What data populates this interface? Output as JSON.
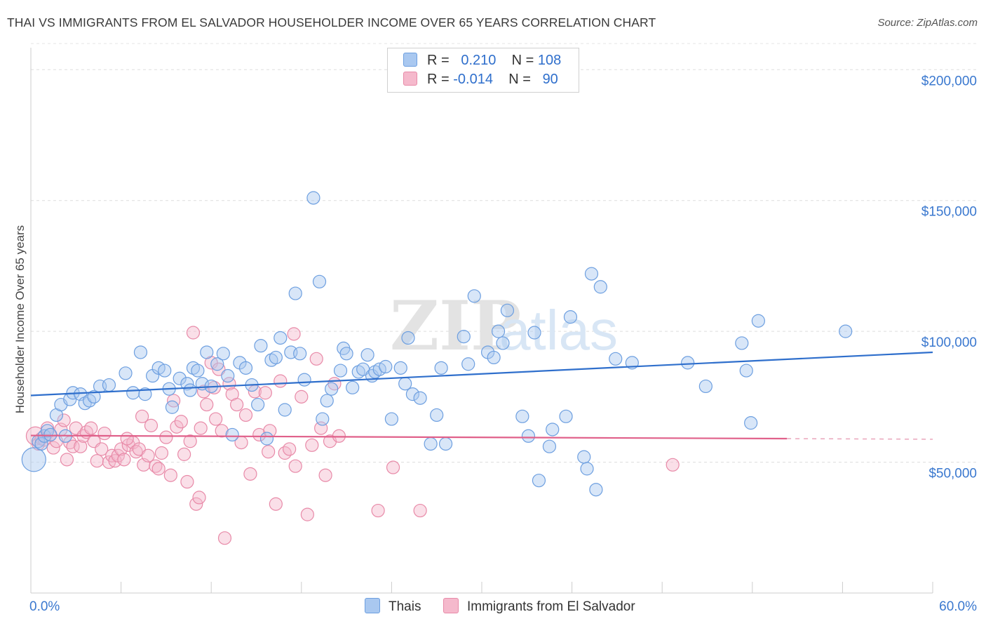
{
  "title": "THAI VS IMMIGRANTS FROM EL SALVADOR HOUSEHOLDER INCOME OVER 65 YEARS CORRELATION CHART",
  "source": "Source: ZipAtlas.com",
  "watermark": {
    "zip": "ZIP",
    "atlas": "atlas"
  },
  "legend": {
    "rows": [
      {
        "r_label": "R =",
        "r_value": "0.210",
        "n_label": "N =",
        "n_value": "108",
        "color": "#a9c8f0"
      },
      {
        "r_label": "R =",
        "r_value": "-0.014",
        "n_label": "N =",
        "n_value": "90",
        "color": "#f5b9cc"
      }
    ]
  },
  "bottom_legend": [
    {
      "label": "Thais",
      "color": "#a9c8f0"
    },
    {
      "label": "Immigrants from El Salvador",
      "color": "#f5b9cc"
    }
  ],
  "chart_data": {
    "type": "scatter",
    "title": "THAI VS IMMIGRANTS FROM EL SALVADOR HOUSEHOLDER INCOME OVER 65 YEARS CORRELATION CHART",
    "xlabel": "",
    "ylabel": "Householder Income Over 65 years",
    "xlim": [
      0,
      60
    ],
    "ylim": [
      0,
      210000
    ],
    "x_tick_labels": [
      "0.0%",
      "60.0%"
    ],
    "y_ticks": [
      50000,
      100000,
      150000,
      200000
    ],
    "y_tick_labels": [
      "$50,000",
      "$100,000",
      "$150,000",
      "$200,000"
    ],
    "grid": "horizontal dashed",
    "legend_position": "top-center",
    "series": [
      {
        "name": "Thais",
        "color": "#6d9fe0",
        "fill": "#a9c8f0",
        "trend": {
          "x": [
            0,
            60
          ],
          "y": [
            75500,
            92000
          ],
          "color": "#2f6fcc"
        },
        "points": [
          [
            0.2,
            51000
          ],
          [
            0.5,
            58000
          ],
          [
            0.7,
            57000
          ],
          [
            0.9,
            60000
          ],
          [
            1.1,
            62000
          ],
          [
            1.3,
            60500
          ],
          [
            1.7,
            68000
          ],
          [
            2.0,
            72000
          ],
          [
            2.3,
            60000
          ],
          [
            2.6,
            74000
          ],
          [
            2.8,
            76500
          ],
          [
            3.3,
            76000
          ],
          [
            3.6,
            72500
          ],
          [
            3.9,
            73500
          ],
          [
            4.2,
            75000
          ],
          [
            4.6,
            79000
          ],
          [
            5.2,
            79500
          ],
          [
            6.3,
            84000
          ],
          [
            6.8,
            76500
          ],
          [
            7.3,
            92000
          ],
          [
            7.6,
            76000
          ],
          [
            8.1,
            83000
          ],
          [
            8.5,
            86000
          ],
          [
            8.9,
            85000
          ],
          [
            9.2,
            78000
          ],
          [
            9.4,
            71000
          ],
          [
            9.9,
            82000
          ],
          [
            10.4,
            80000
          ],
          [
            10.6,
            77500
          ],
          [
            10.8,
            86000
          ],
          [
            11.1,
            85000
          ],
          [
            11.4,
            80000
          ],
          [
            11.7,
            92000
          ],
          [
            12.0,
            79000
          ],
          [
            12.4,
            87500
          ],
          [
            12.8,
            91500
          ],
          [
            13.1,
            83000
          ],
          [
            13.4,
            60500
          ],
          [
            13.9,
            88000
          ],
          [
            14.3,
            86000
          ],
          [
            14.7,
            79500
          ],
          [
            15.1,
            72000
          ],
          [
            15.3,
            94500
          ],
          [
            15.7,
            59000
          ],
          [
            16.0,
            89000
          ],
          [
            16.3,
            90000
          ],
          [
            16.6,
            97500
          ],
          [
            16.9,
            70000
          ],
          [
            17.3,
            92000
          ],
          [
            17.6,
            114500
          ],
          [
            17.9,
            91500
          ],
          [
            18.2,
            81500
          ],
          [
            18.8,
            151000
          ],
          [
            19.2,
            119000
          ],
          [
            19.4,
            66500
          ],
          [
            19.7,
            73500
          ],
          [
            20.0,
            78000
          ],
          [
            20.6,
            85000
          ],
          [
            20.8,
            93500
          ],
          [
            21.0,
            91500
          ],
          [
            21.4,
            78500
          ],
          [
            21.8,
            84500
          ],
          [
            22.1,
            85500
          ],
          [
            22.4,
            91000
          ],
          [
            22.7,
            83000
          ],
          [
            22.9,
            84500
          ],
          [
            23.2,
            85500
          ],
          [
            23.6,
            86500
          ],
          [
            24.0,
            66500
          ],
          [
            24.6,
            86000
          ],
          [
            24.9,
            80000
          ],
          [
            25.1,
            97500
          ],
          [
            25.4,
            76000
          ],
          [
            25.9,
            74500
          ],
          [
            26.6,
            57000
          ],
          [
            27.0,
            68000
          ],
          [
            27.3,
            86000
          ],
          [
            27.6,
            57000
          ],
          [
            28.8,
            98000
          ],
          [
            29.1,
            87500
          ],
          [
            29.5,
            113500
          ],
          [
            30.4,
            92000
          ],
          [
            30.8,
            90000
          ],
          [
            31.1,
            100000
          ],
          [
            31.4,
            95500
          ],
          [
            31.7,
            108000
          ],
          [
            32.7,
            67500
          ],
          [
            33.1,
            60000
          ],
          [
            33.5,
            99500
          ],
          [
            33.8,
            43000
          ],
          [
            34.5,
            56000
          ],
          [
            34.7,
            62500
          ],
          [
            35.6,
            67500
          ],
          [
            35.9,
            105500
          ],
          [
            36.8,
            52000
          ],
          [
            37.0,
            47500
          ],
          [
            37.3,
            122000
          ],
          [
            37.6,
            39500
          ],
          [
            37.9,
            117000
          ],
          [
            38.9,
            89500
          ],
          [
            40.0,
            88000
          ],
          [
            43.7,
            88000
          ],
          [
            44.9,
            79000
          ],
          [
            47.3,
            95500
          ],
          [
            47.6,
            85000
          ],
          [
            47.9,
            65000
          ],
          [
            48.4,
            104000
          ],
          [
            54.2,
            100000
          ]
        ]
      },
      {
        "name": "Immigrants from El Salvador",
        "color": "#e88aa8",
        "fill": "#f5b9cc",
        "trend": {
          "x": [
            0,
            50.3
          ],
          "y": [
            60200,
            59000
          ],
          "color": "#e0608a",
          "dashed_extension_to_x": 60
        },
        "points": [
          [
            0.3,
            60000
          ],
          [
            0.5,
            57000
          ],
          [
            0.7,
            59000
          ],
          [
            0.9,
            58500
          ],
          [
            1.1,
            63000
          ],
          [
            1.3,
            60500
          ],
          [
            1.5,
            55500
          ],
          [
            1.7,
            58000
          ],
          [
            2.0,
            62500
          ],
          [
            2.2,
            66000
          ],
          [
            2.4,
            51000
          ],
          [
            2.6,
            57500
          ],
          [
            2.8,
            56000
          ],
          [
            3.0,
            63000
          ],
          [
            3.3,
            56000
          ],
          [
            3.5,
            60000
          ],
          [
            3.7,
            61500
          ],
          [
            4.0,
            63000
          ],
          [
            4.2,
            58000
          ],
          [
            4.4,
            50500
          ],
          [
            4.7,
            55000
          ],
          [
            4.9,
            61000
          ],
          [
            5.2,
            50000
          ],
          [
            5.4,
            52500
          ],
          [
            5.6,
            50500
          ],
          [
            5.8,
            52500
          ],
          [
            6.0,
            55000
          ],
          [
            6.2,
            51000
          ],
          [
            6.5,
            56500
          ],
          [
            6.8,
            57500
          ],
          [
            7.0,
            54000
          ],
          [
            7.2,
            55000
          ],
          [
            7.4,
            67500
          ],
          [
            7.5,
            49000
          ],
          [
            7.8,
            52500
          ],
          [
            8.0,
            64000
          ],
          [
            8.3,
            48500
          ],
          [
            8.5,
            47500
          ],
          [
            8.7,
            53500
          ],
          [
            9.0,
            59500
          ],
          [
            9.3,
            45000
          ],
          [
            9.5,
            73500
          ],
          [
            9.7,
            63500
          ],
          [
            10.2,
            53000
          ],
          [
            10.4,
            42500
          ],
          [
            10.6,
            58000
          ],
          [
            10.8,
            99500
          ],
          [
            11.0,
            34000
          ],
          [
            11.2,
            36500
          ],
          [
            11.5,
            77000
          ],
          [
            11.7,
            72000
          ],
          [
            12.0,
            88000
          ],
          [
            12.2,
            78500
          ],
          [
            12.5,
            85500
          ],
          [
            12.7,
            62000
          ],
          [
            12.9,
            21000
          ],
          [
            13.2,
            80000
          ],
          [
            13.4,
            76000
          ],
          [
            13.7,
            72000
          ],
          [
            14.0,
            57500
          ],
          [
            14.3,
            68000
          ],
          [
            14.6,
            45500
          ],
          [
            14.9,
            77000
          ],
          [
            15.2,
            60500
          ],
          [
            15.6,
            76500
          ],
          [
            15.9,
            62000
          ],
          [
            16.3,
            34000
          ],
          [
            16.6,
            81000
          ],
          [
            16.9,
            53500
          ],
          [
            17.2,
            55000
          ],
          [
            17.6,
            48500
          ],
          [
            18.0,
            75000
          ],
          [
            18.4,
            30000
          ],
          [
            18.7,
            56500
          ],
          [
            19.0,
            89500
          ],
          [
            19.3,
            63000
          ],
          [
            19.6,
            45000
          ],
          [
            19.9,
            58000
          ],
          [
            20.2,
            80000
          ],
          [
            20.5,
            60000
          ],
          [
            23.1,
            31500
          ],
          [
            24.1,
            48000
          ],
          [
            25.9,
            31500
          ],
          [
            42.7,
            49000
          ],
          [
            17.5,
            99000
          ],
          [
            15.8,
            54000
          ],
          [
            10.0,
            65500
          ],
          [
            6.4,
            59000
          ],
          [
            12.3,
            66500
          ],
          [
            11.3,
            63000
          ]
        ]
      }
    ]
  }
}
